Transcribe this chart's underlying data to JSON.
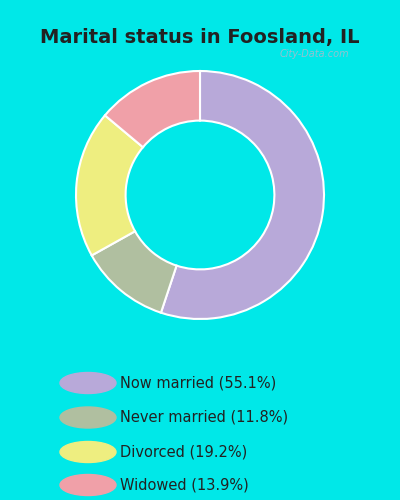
{
  "title": "Marital status in Foosland, IL",
  "categories": [
    "Now married (55.1%)",
    "Never married (11.8%)",
    "Divorced (19.2%)",
    "Widowed (13.9%)"
  ],
  "values": [
    55.1,
    11.8,
    19.2,
    13.9
  ],
  "colors": [
    "#b8a9d9",
    "#b0bfa0",
    "#eeee80",
    "#f0a0a8"
  ],
  "bg_cyan": "#00e8e8",
  "bg_chart": "#e8f5ee",
  "title_fontsize": 14,
  "legend_fontsize": 10.5,
  "watermark": "City-Data.com",
  "startangle": 90
}
